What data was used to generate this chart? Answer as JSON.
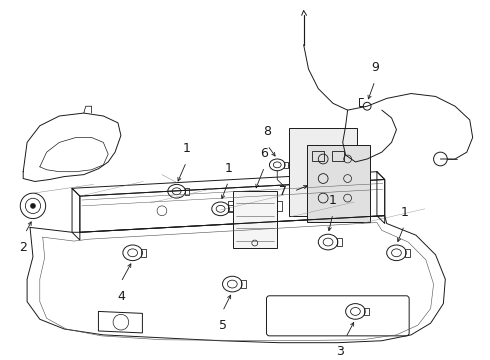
{
  "bg_color": "#ffffff",
  "line_color": "#1a1a1a",
  "fig_width": 4.9,
  "fig_height": 3.6,
  "dpi": 100,
  "font_size": 9
}
